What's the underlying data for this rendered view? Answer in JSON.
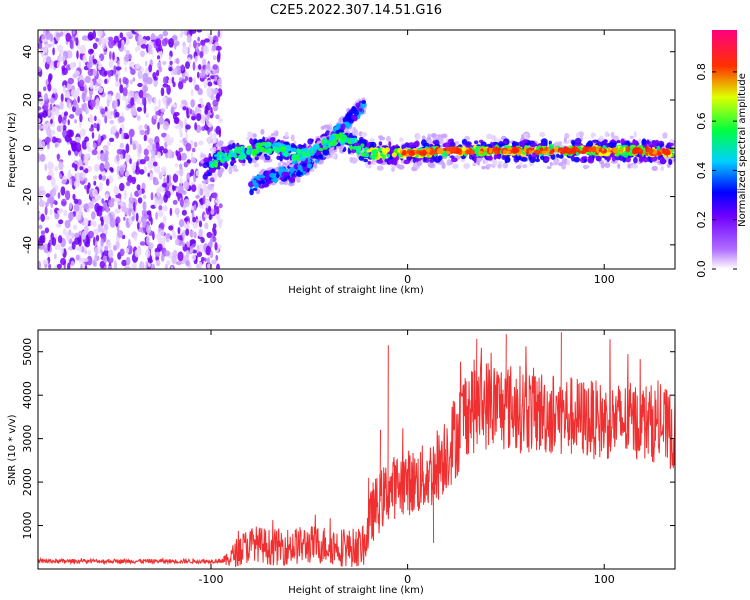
{
  "title": "C2E5.2022.307.14.51.G16",
  "chart_data": [
    {
      "type": "heatmap",
      "xlabel": "Height of straight line (km)",
      "ylabel": "Frequency (Hz)",
      "xlim": [
        -188,
        136
      ],
      "ylim": [
        -50,
        49
      ],
      "xticks": [
        -100,
        0,
        100
      ],
      "yticks": [
        -40,
        -20,
        0,
        20,
        40
      ],
      "colorbar": {
        "label": "Normalized spectral amplitude",
        "range": [
          0,
          0.97
        ],
        "ticks": [
          0.0,
          0.2,
          0.4,
          0.6,
          0.8
        ],
        "colors": [
          "#ffffff",
          "#7f00ff",
          "#0000ff",
          "#00ffff",
          "#00ff00",
          "#ffff00",
          "#ff0000",
          "#ff0080"
        ]
      },
      "noise_region": {
        "x": [
          -188,
          -95
        ],
        "y": [
          -50,
          49
        ]
      },
      "main_track": [
        [
          -103,
          -8
        ],
        [
          -95,
          -4
        ],
        [
          -85,
          -2
        ],
        [
          -75,
          0
        ],
        [
          -65,
          0
        ],
        [
          -55,
          -3
        ],
        [
          -45,
          1
        ],
        [
          -35,
          4
        ],
        [
          -28,
          2
        ],
        [
          -20,
          -2
        ],
        [
          -10,
          -2
        ],
        [
          0,
          -2
        ],
        [
          20,
          -1
        ],
        [
          40,
          -1
        ],
        [
          60,
          -1
        ],
        [
          80,
          -1
        ],
        [
          100,
          -1
        ],
        [
          120,
          -1
        ],
        [
          136,
          -2
        ]
      ],
      "secondary_tracks": [
        [
          [
            -80,
            -16
          ],
          [
            -70,
            -12
          ],
          [
            -60,
            -10
          ],
          [
            -50,
            -4
          ],
          [
            -40,
            0
          ],
          [
            -33,
            4
          ]
        ],
        [
          [
            -60,
            -12
          ],
          [
            -50,
            -6
          ],
          [
            -40,
            2
          ],
          [
            -30,
            12
          ],
          [
            -22,
            18
          ]
        ]
      ]
    },
    {
      "type": "line",
      "xlabel": "Height of straight line (km)",
      "ylabel": "SNR (10 * v/v)",
      "xlim": [
        -188,
        136
      ],
      "ylim": [
        0,
        5500
      ],
      "xticks": [
        -100,
        0,
        100
      ],
      "yticks": [
        1000,
        2000,
        3000,
        4000,
        5000
      ],
      "color": "#f03030",
      "envelope": [
        [
          -188,
          180
        ],
        [
          -100,
          180
        ],
        [
          -92,
          200
        ],
        [
          -85,
          450
        ],
        [
          -78,
          600
        ],
        [
          -70,
          500
        ],
        [
          -60,
          520
        ],
        [
          -50,
          560
        ],
        [
          -40,
          550
        ],
        [
          -30,
          480
        ],
        [
          -22,
          520
        ],
        [
          -18,
          1300
        ],
        [
          -10,
          1800
        ],
        [
          -2,
          2000
        ],
        [
          5,
          2000
        ],
        [
          12,
          2200
        ],
        [
          18,
          2600
        ],
        [
          25,
          3100
        ],
        [
          30,
          3700
        ],
        [
          40,
          3800
        ],
        [
          55,
          3700
        ],
        [
          70,
          3600
        ],
        [
          85,
          3500
        ],
        [
          100,
          3400
        ],
        [
          120,
          3400
        ],
        [
          130,
          3300
        ],
        [
          136,
          3100
        ]
      ],
      "noise_amplitude": [
        [
          -188,
          50
        ],
        [
          -95,
          50
        ],
        [
          -85,
          400
        ],
        [
          -50,
          450
        ],
        [
          -22,
          450
        ],
        [
          -18,
          700
        ],
        [
          10,
          800
        ],
        [
          30,
          1100
        ],
        [
          100,
          900
        ],
        [
          136,
          900
        ]
      ],
      "spikes": [
        [
          -10,
          5150
        ],
        [
          -14,
          3200
        ],
        [
          -20,
          2100
        ],
        [
          13,
          600
        ],
        [
          50,
          5400
        ],
        [
          78,
          5450
        ],
        [
          35,
          5300
        ]
      ]
    }
  ]
}
